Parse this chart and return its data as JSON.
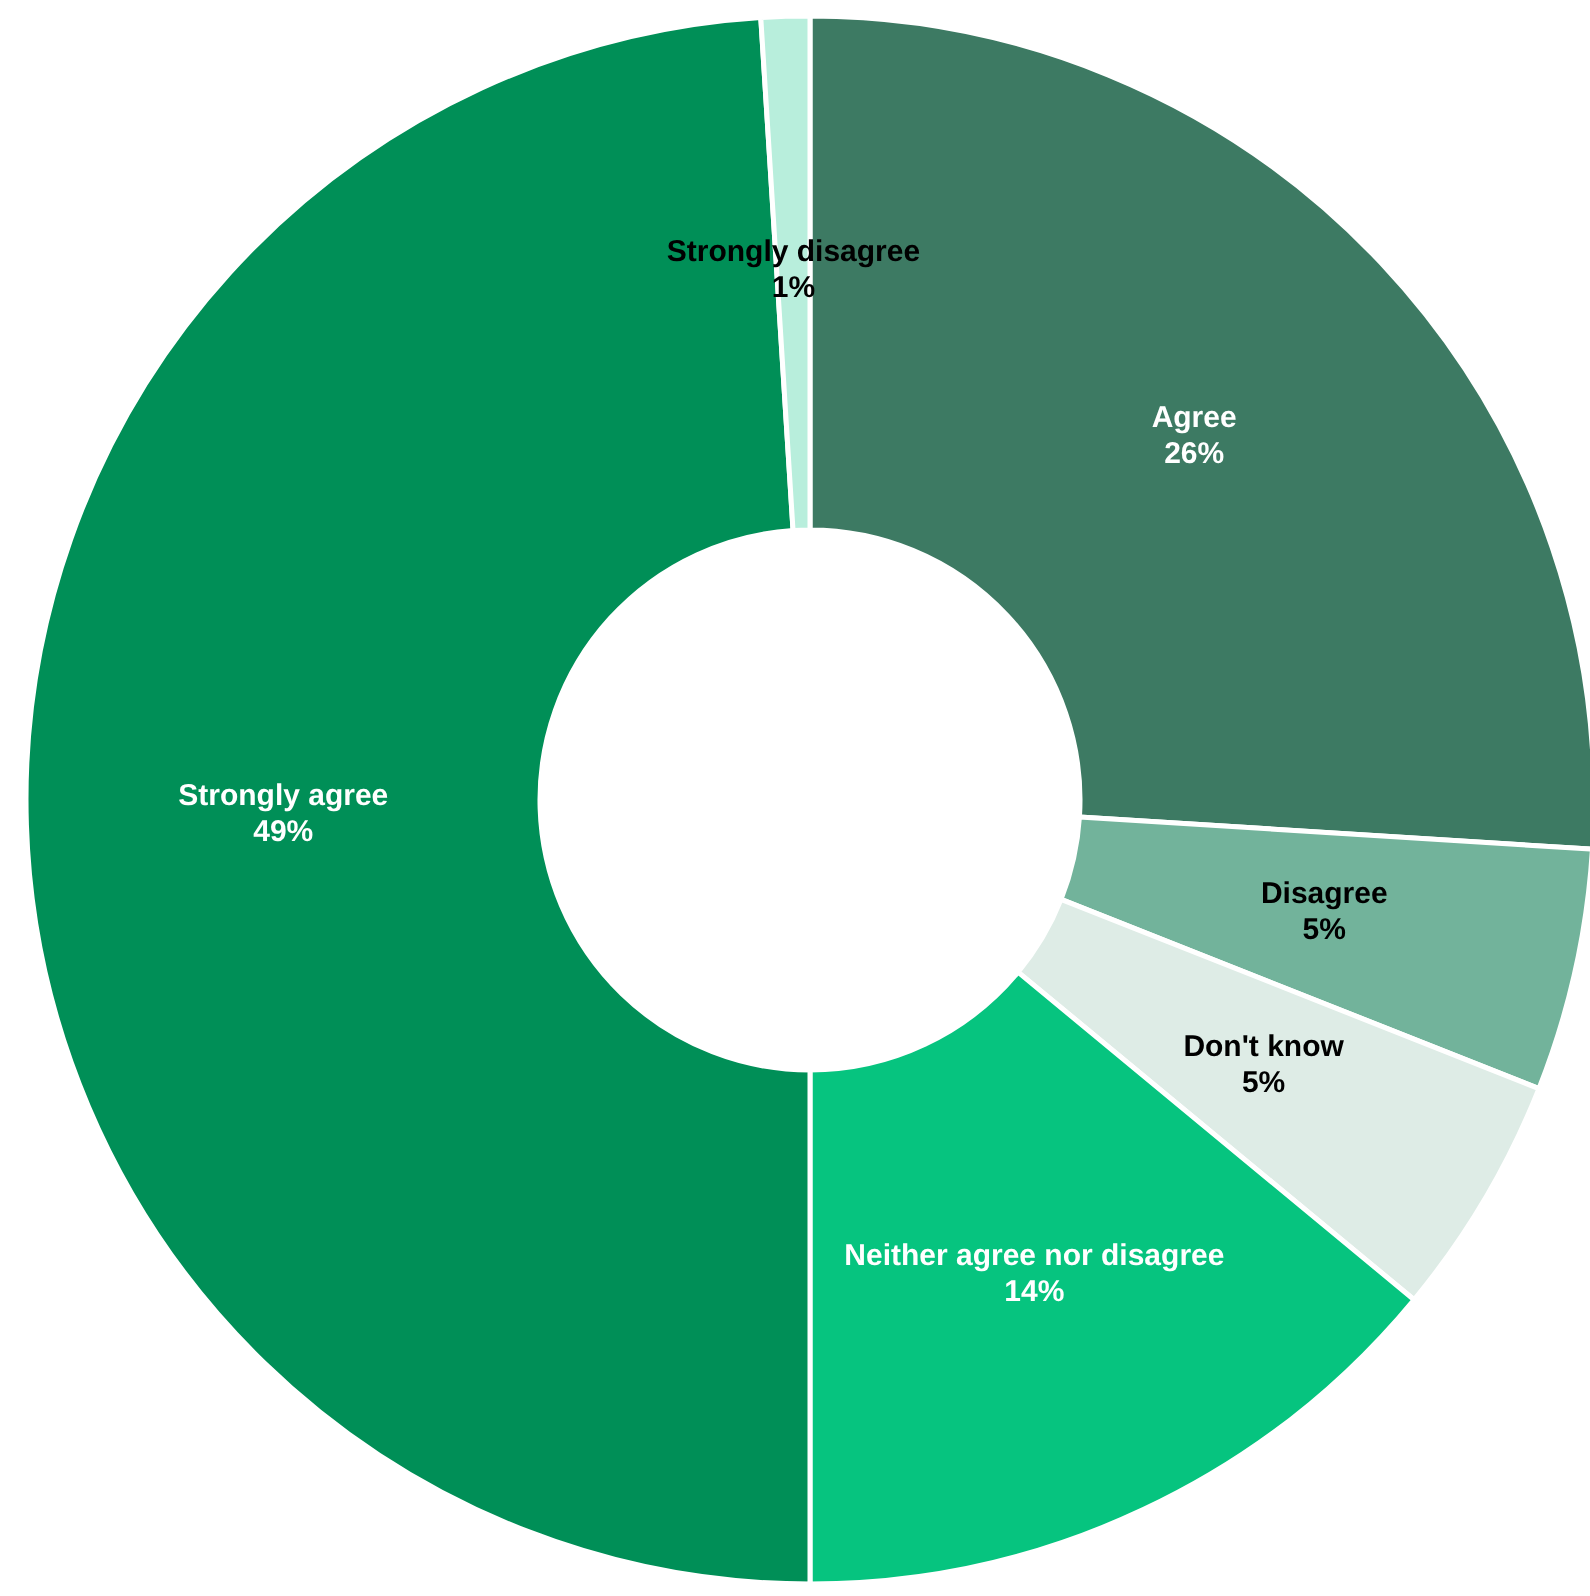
{
  "chart_data": {
    "type": "donut",
    "categories": [
      "Agree",
      "Disagree",
      "Don't know",
      "Neither agree nor disagree",
      "Strongly agree",
      "Strongly disagree"
    ],
    "values": [
      26,
      5,
      5,
      14,
      49,
      1
    ],
    "colors": [
      "#3d7a63",
      "#72b39b",
      "#deece6",
      "#06c47f",
      "#008f57",
      "#b8eedc"
    ],
    "value_labels": [
      "26%",
      "5%",
      "5%",
      "14%",
      "49%",
      "1%"
    ]
  }
}
